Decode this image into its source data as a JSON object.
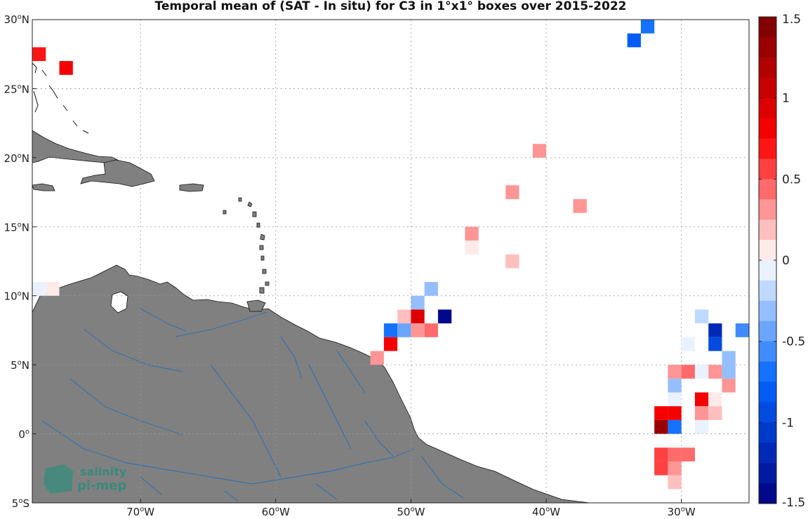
{
  "title": "Temporal mean of (SAT - In situ) for C3 in 1°x1° boxes over 2015-2022",
  "map": {
    "lon_range": [
      -78,
      -25
    ],
    "lat_range": [
      -5,
      30
    ],
    "lat_ticks": [
      {
        "value": 30,
        "num": "30",
        "hemi": "N"
      },
      {
        "value": 25,
        "num": "25",
        "hemi": "N"
      },
      {
        "value": 20,
        "num": "20",
        "hemi": "N"
      },
      {
        "value": 15,
        "num": "15",
        "hemi": "N"
      },
      {
        "value": 10,
        "num": "10",
        "hemi": "N"
      },
      {
        "value": 5,
        "num": "5",
        "hemi": "N"
      },
      {
        "value": 0,
        "num": "0",
        "hemi": ""
      },
      {
        "value": -5,
        "num": "5",
        "hemi": "S"
      }
    ],
    "lon_ticks": [
      {
        "value": -70,
        "num": "70",
        "hemi": "W"
      },
      {
        "value": -60,
        "num": "60",
        "hemi": "W"
      },
      {
        "value": -50,
        "num": "50",
        "hemi": "W"
      },
      {
        "value": -40,
        "num": "40",
        "hemi": "W"
      },
      {
        "value": -30,
        "num": "30",
        "hemi": "W"
      }
    ],
    "land_color": "#808080",
    "river_color": "#1f6fb8",
    "grid": "dotted"
  },
  "colorbar": {
    "min": -1.5,
    "max": 1.5,
    "ticks": [
      {
        "value": 1.5,
        "label": "1.5"
      },
      {
        "value": 1,
        "label": "1"
      },
      {
        "value": 0.5,
        "label": "0.5"
      },
      {
        "value": 0,
        "label": "0"
      },
      {
        "value": -0.5,
        "label": "-0.5"
      },
      {
        "value": -1,
        "label": "-1"
      },
      {
        "value": -1.5,
        "label": "-1.5"
      }
    ],
    "steps": 24
  },
  "chart_data": {
    "type": "heatmap",
    "title": "Temporal mean of (SAT - In situ) for C3 in 1°x1° boxes over 2015-2022",
    "units": "",
    "cells": [
      {
        "lon": -32.5,
        "lat": 29.5,
        "value": -0.75
      },
      {
        "lon": -33.5,
        "lat": 28.5,
        "value": -0.85
      },
      {
        "lon": -77.5,
        "lat": 27.5,
        "value": 0.7
      },
      {
        "lon": -75.5,
        "lat": 26.5,
        "value": 0.85
      },
      {
        "lon": -40.5,
        "lat": 20.5,
        "value": 0.3
      },
      {
        "lon": -42.5,
        "lat": 17.5,
        "value": 0.3
      },
      {
        "lon": -37.5,
        "lat": 16.5,
        "value": 0.35
      },
      {
        "lon": -45.5,
        "lat": 14.5,
        "value": 0.3
      },
      {
        "lon": -45.5,
        "lat": 13.5,
        "value": 0.12
      },
      {
        "lon": -42.5,
        "lat": 12.5,
        "value": 0.15
      },
      {
        "lon": -77.5,
        "lat": 10.5,
        "value": -0.12
      },
      {
        "lon": -76.5,
        "lat": 10.5,
        "value": 0.1
      },
      {
        "lon": -48.5,
        "lat": 10.5,
        "value": -0.3
      },
      {
        "lon": -49.5,
        "lat": 9.5,
        "value": -0.3
      },
      {
        "lon": -50.5,
        "lat": 8.5,
        "value": 0.15
      },
      {
        "lon": -49.5,
        "lat": 8.5,
        "value": 0.9
      },
      {
        "lon": -47.5,
        "lat": 8.5,
        "value": -1.5
      },
      {
        "lon": -51.5,
        "lat": 7.5,
        "value": -0.7
      },
      {
        "lon": -50.5,
        "lat": 7.5,
        "value": -0.4
      },
      {
        "lon": -49.5,
        "lat": 7.5,
        "value": 0.25
      },
      {
        "lon": -48.5,
        "lat": 7.5,
        "value": 0.45
      },
      {
        "lon": -51.5,
        "lat": 6.5,
        "value": 0.85
      },
      {
        "lon": -52.5,
        "lat": 5.5,
        "value": 0.25
      },
      {
        "lon": -28.5,
        "lat": 8.5,
        "value": -0.15
      },
      {
        "lon": -27.5,
        "lat": 7.5,
        "value": -1.25
      },
      {
        "lon": -25.5,
        "lat": 7.5,
        "value": -0.6
      },
      {
        "lon": -29.5,
        "lat": 6.5,
        "value": -0.12
      },
      {
        "lon": -27.5,
        "lat": 6.5,
        "value": -0.95
      },
      {
        "lon": -26.5,
        "lat": 5.5,
        "value": -0.3
      },
      {
        "lon": -30.5,
        "lat": 4.5,
        "value": 0.35
      },
      {
        "lon": -29.5,
        "lat": 4.5,
        "value": 0.45
      },
      {
        "lon": -28.5,
        "lat": 4.5,
        "value": -0.12
      },
      {
        "lon": -27.5,
        "lat": 4.5,
        "value": 0.35
      },
      {
        "lon": -26.5,
        "lat": 4.5,
        "value": -0.35
      },
      {
        "lon": -30.5,
        "lat": 3.5,
        "value": -0.3
      },
      {
        "lon": -26.5,
        "lat": 3.5,
        "value": 0.3
      },
      {
        "lon": -30.5,
        "lat": 2.5,
        "value": -0.12
      },
      {
        "lon": -28.5,
        "lat": 2.5,
        "value": 0.75
      },
      {
        "lon": -27.5,
        "lat": 2.5,
        "value": 0.12
      },
      {
        "lon": -28.5,
        "lat": 1.5,
        "value": 0.35
      },
      {
        "lon": -27.5,
        "lat": 1.5,
        "value": 0.2
      },
      {
        "lon": -31.5,
        "lat": 1.5,
        "value": 0.85
      },
      {
        "lon": -30.5,
        "lat": 1.5,
        "value": 0.85
      },
      {
        "lon": -31.5,
        "lat": 0.5,
        "value": 1.35
      },
      {
        "lon": -30.5,
        "lat": 0.5,
        "value": -0.75
      },
      {
        "lon": -28.5,
        "lat": 0.5,
        "value": -0.12
      },
      {
        "lon": -31.5,
        "lat": -1.5,
        "value": 0.5
      },
      {
        "lon": -30.5,
        "lat": -1.5,
        "value": 0.4
      },
      {
        "lon": -29.5,
        "lat": -1.5,
        "value": 0.4
      },
      {
        "lon": -31.5,
        "lat": -2.5,
        "value": 0.5
      },
      {
        "lon": -30.5,
        "lat": -2.5,
        "value": 0.25
      },
      {
        "lon": -30.5,
        "lat": -3.5,
        "value": 0.15
      }
    ]
  },
  "logo": {
    "line1": "salinity",
    "line2": "pi-mep",
    "color": "#1a8f7a"
  }
}
